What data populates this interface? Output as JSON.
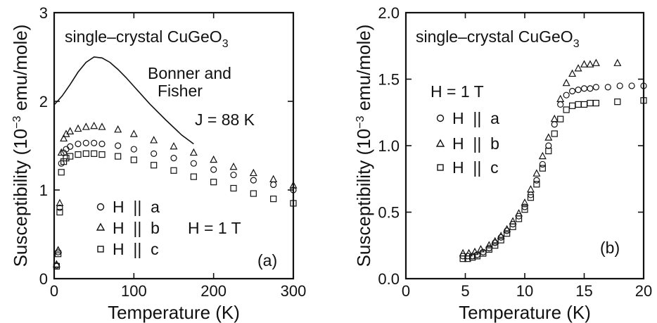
{
  "chart_data": [
    {
      "panel": "a",
      "type": "scatter",
      "xlabel": "Temperature (K)",
      "ylabel_prefix": "Susceptibility (10",
      "ylabel_exp": "−3",
      "ylabel_suffix": " emu/mole)",
      "xlim": [
        0,
        300
      ],
      "ylim": [
        0,
        3
      ],
      "xticks": [
        0,
        100,
        200,
        300
      ],
      "yticks": [
        0,
        1,
        2,
        3
      ],
      "xtick_labels": [
        "0",
        "100",
        "200",
        "300"
      ],
      "ytick_labels": [
        "0",
        "1",
        "2",
        "3"
      ],
      "sample_main": "single–crystal CuGeO",
      "sample_sub": "3",
      "theory_line1": "Bonner and",
      "theory_line2": "Fisher",
      "coupling": "J = 88 K",
      "field": "H = 1 T",
      "panel_label": "(a)",
      "legend": [
        {
          "symbol": "circle",
          "text": "H  ||  a"
        },
        {
          "symbol": "triangle",
          "text": "H  ||  b"
        },
        {
          "symbol": "square",
          "text": "H  ||  c"
        }
      ],
      "theory_curve": {
        "x": [
          0,
          10,
          20,
          30,
          40,
          50,
          60,
          70,
          80,
          90,
          100,
          120,
          140,
          160,
          175
        ],
        "y": [
          1.96,
          2.06,
          2.19,
          2.33,
          2.44,
          2.5,
          2.49,
          2.44,
          2.36,
          2.27,
          2.17,
          1.97,
          1.79,
          1.62,
          1.52
        ]
      },
      "series": [
        {
          "marker": "circle",
          "x": [
            3,
            5,
            7,
            9,
            12,
            15,
            20,
            30,
            40,
            50,
            60,
            80,
            100,
            125,
            150,
            175,
            200,
            225,
            250,
            275,
            300
          ],
          "y": [
            0.15,
            0.3,
            0.8,
            1.3,
            1.42,
            1.46,
            1.49,
            1.52,
            1.53,
            1.53,
            1.52,
            1.5,
            1.46,
            1.41,
            1.36,
            1.3,
            1.23,
            1.17,
            1.11,
            1.06,
            1.0
          ]
        },
        {
          "marker": "triangle",
          "x": [
            3,
            5,
            7,
            9,
            12,
            15,
            20,
            30,
            40,
            50,
            60,
            80,
            100,
            125,
            150,
            175,
            200,
            225,
            250,
            275,
            300
          ],
          "y": [
            0.16,
            0.32,
            0.85,
            1.42,
            1.58,
            1.63,
            1.66,
            1.69,
            1.71,
            1.72,
            1.71,
            1.68,
            1.63,
            1.56,
            1.49,
            1.42,
            1.34,
            1.26,
            1.19,
            1.12,
            1.05
          ]
        },
        {
          "marker": "square",
          "x": [
            3,
            5,
            7,
            9,
            12,
            15,
            20,
            30,
            40,
            50,
            60,
            80,
            100,
            125,
            150,
            175,
            200,
            225,
            250,
            275,
            300
          ],
          "y": [
            0.14,
            0.28,
            0.75,
            1.2,
            1.32,
            1.36,
            1.38,
            1.4,
            1.41,
            1.41,
            1.4,
            1.38,
            1.34,
            1.28,
            1.22,
            1.15,
            1.09,
            1.02,
            0.96,
            0.9,
            0.85
          ]
        }
      ]
    },
    {
      "panel": "b",
      "type": "scatter",
      "xlabel": "Temperature (K)",
      "ylabel_prefix": "Susceptibility (10",
      "ylabel_exp": "−3",
      "ylabel_suffix": " emu/mole)",
      "xlim": [
        0,
        20
      ],
      "ylim": [
        0,
        2.0
      ],
      "xticks": [
        0,
        5,
        10,
        15,
        20
      ],
      "yticks": [
        0,
        0.5,
        1.0,
        1.5,
        2.0
      ],
      "xtick_labels": [
        "0",
        "5",
        "10",
        "15",
        "20"
      ],
      "ytick_labels": [
        "0.0",
        "0.5",
        "1.0",
        "1.5",
        "2.0"
      ],
      "sample_main": "single–crystal CuGeO",
      "sample_sub": "3",
      "field": "H = 1 T",
      "panel_label": "(b)",
      "legend": [
        {
          "symbol": "circle",
          "text": "H  ||  a"
        },
        {
          "symbol": "triangle",
          "text": "H  ||  b"
        },
        {
          "symbol": "square",
          "text": "H  ||  c"
        }
      ],
      "series": [
        {
          "marker": "circle",
          "x": [
            4.8,
            5.2,
            5.6,
            6.0,
            6.5,
            7.0,
            7.5,
            8.0,
            8.5,
            9.0,
            9.5,
            10.0,
            10.5,
            11.0,
            11.5,
            12.0,
            12.5,
            13.0,
            13.5,
            14.0,
            14.5,
            15.0,
            15.5,
            16.0,
            17.0,
            18.0,
            19.0,
            20.0
          ],
          "y": [
            0.17,
            0.17,
            0.17,
            0.18,
            0.2,
            0.23,
            0.27,
            0.31,
            0.36,
            0.41,
            0.47,
            0.54,
            0.63,
            0.74,
            0.86,
            1.0,
            1.16,
            1.31,
            1.38,
            1.41,
            1.42,
            1.43,
            1.43,
            1.44,
            1.44,
            1.45,
            1.45,
            1.45
          ]
        },
        {
          "marker": "triangle",
          "x": [
            4.8,
            5.3,
            5.8,
            6.3,
            7.0,
            7.5,
            8.0,
            8.5,
            9.0,
            9.5,
            10.0,
            10.5,
            11.0,
            11.5,
            12.0,
            12.5,
            13.0,
            13.5,
            14.0,
            14.5,
            15.0,
            15.5,
            16.0,
            17.8
          ],
          "y": [
            0.19,
            0.19,
            0.2,
            0.22,
            0.25,
            0.28,
            0.32,
            0.37,
            0.43,
            0.49,
            0.57,
            0.67,
            0.79,
            0.92,
            1.06,
            1.2,
            1.35,
            1.47,
            1.54,
            1.58,
            1.61,
            1.61,
            1.62,
            1.62
          ]
        },
        {
          "marker": "square",
          "x": [
            4.8,
            5.2,
            5.6,
            6.0,
            6.5,
            7.0,
            7.5,
            8.0,
            8.5,
            9.0,
            9.5,
            10.0,
            10.5,
            11.0,
            11.5,
            12.0,
            12.5,
            13.0,
            13.5,
            14.0,
            14.5,
            15.0,
            15.5,
            16.0,
            17.8,
            20.0
          ],
          "y": [
            0.15,
            0.15,
            0.16,
            0.17,
            0.19,
            0.22,
            0.25,
            0.29,
            0.34,
            0.39,
            0.45,
            0.52,
            0.61,
            0.71,
            0.83,
            0.96,
            1.09,
            1.2,
            1.27,
            1.3,
            1.31,
            1.31,
            1.32,
            1.32,
            1.33,
            1.34
          ]
        }
      ]
    }
  ]
}
